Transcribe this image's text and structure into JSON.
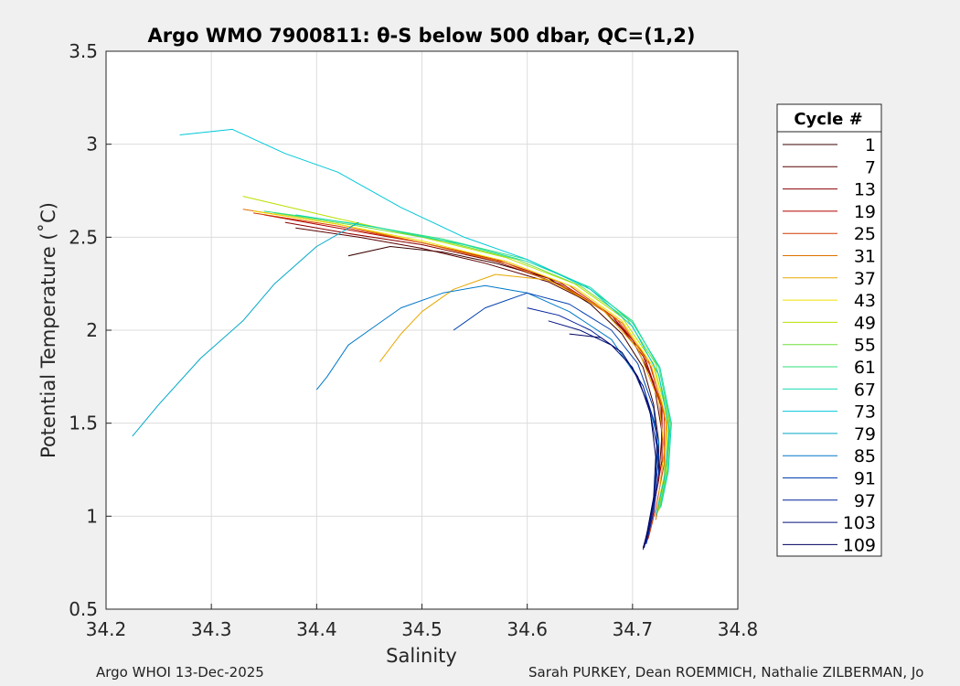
{
  "chart_data": {
    "type": "line",
    "title": "Argo WMO 7900811: θ-S below 500 dbar,  QC=(1,2)",
    "xlabel": "Salinity",
    "ylabel": "Potential Temperature (˚C)",
    "xlim": [
      34.2,
      34.8
    ],
    "ylim": [
      0.5,
      3.5
    ],
    "xticks": [
      "34.2",
      "34.3",
      "34.4",
      "34.5",
      "34.6",
      "34.7",
      "34.8"
    ],
    "yticks": [
      "0.5",
      "1",
      "1.5",
      "2",
      "2.5",
      "3",
      "3.5"
    ],
    "grid": true,
    "legend": {
      "title": "Cycle #",
      "placement": "right",
      "entries": [
        "1",
        "7",
        "13",
        "19",
        "25",
        "31",
        "37",
        "43",
        "49",
        "55",
        "61",
        "67",
        "73",
        "79",
        "85",
        "91",
        "97",
        "103",
        "109"
      ]
    },
    "colors": {
      "1": "#3a0000",
      "7": "#5a0000",
      "13": "#8b0000",
      "19": "#b30000",
      "25": "#d43a00",
      "31": "#e07000",
      "37": "#e8a800",
      "43": "#f0e000",
      "49": "#b8e000",
      "55": "#6fe03a",
      "61": "#2ee07a",
      "67": "#10d8b0",
      "73": "#00c8d8",
      "79": "#00a8c8",
      "85": "#0078c8",
      "91": "#0040b0",
      "97": "#00209a",
      "103": "#00107a",
      "109": "#000060"
    },
    "series": [
      {
        "name": "1",
        "x": [
          34.43,
          34.47,
          34.52,
          34.57,
          34.62,
          34.66,
          34.69,
          34.71,
          34.72,
          34.725,
          34.725,
          34.72,
          34.715,
          34.71
        ],
        "y": [
          2.4,
          2.45,
          2.42,
          2.36,
          2.28,
          2.14,
          1.98,
          1.8,
          1.6,
          1.4,
          1.2,
          1.05,
          0.93,
          0.83
        ]
      },
      {
        "name": "7",
        "x": [
          34.38,
          34.44,
          34.5,
          34.56,
          34.62,
          34.67,
          34.7,
          34.72,
          34.728,
          34.725,
          34.718,
          34.712
        ],
        "y": [
          2.55,
          2.5,
          2.44,
          2.36,
          2.26,
          2.12,
          1.95,
          1.72,
          1.45,
          1.2,
          1.0,
          0.85
        ]
      },
      {
        "name": "13",
        "x": [
          34.37,
          34.43,
          34.5,
          34.57,
          34.63,
          34.68,
          34.71,
          34.727,
          34.728,
          34.72,
          34.713
        ],
        "y": [
          2.58,
          2.52,
          2.46,
          2.37,
          2.25,
          2.08,
          1.88,
          1.6,
          1.3,
          1.05,
          0.86
        ]
      },
      {
        "name": "19",
        "x": [
          34.35,
          34.42,
          34.5,
          34.57,
          34.63,
          34.68,
          34.71,
          34.728,
          34.728,
          34.72,
          34.714
        ],
        "y": [
          2.62,
          2.55,
          2.47,
          2.38,
          2.26,
          2.08,
          1.86,
          1.58,
          1.3,
          1.05,
          0.87
        ]
      },
      {
        "name": "25",
        "x": [
          34.34,
          34.42,
          34.5,
          34.58,
          34.64,
          34.685,
          34.715,
          34.73,
          34.73,
          34.722,
          34.715
        ],
        "y": [
          2.63,
          2.56,
          2.47,
          2.37,
          2.24,
          2.06,
          1.84,
          1.56,
          1.28,
          1.04,
          0.88
        ]
      },
      {
        "name": "31",
        "x": [
          34.33,
          34.42,
          34.5,
          34.58,
          34.64,
          34.69,
          34.718,
          34.732,
          34.73,
          34.722
        ],
        "y": [
          2.65,
          2.57,
          2.47,
          2.36,
          2.22,
          2.04,
          1.8,
          1.5,
          1.2,
          0.98
        ]
      },
      {
        "name": "37",
        "x": [
          34.46,
          34.48,
          34.5,
          34.53,
          34.57,
          34.62,
          34.67,
          34.705,
          34.725,
          34.73,
          34.725
        ],
        "y": [
          1.83,
          1.98,
          2.1,
          2.22,
          2.3,
          2.27,
          2.12,
          1.9,
          1.62,
          1.35,
          1.12
        ]
      },
      {
        "name": "43",
        "x": [
          34.34,
          34.42,
          34.5,
          34.58,
          34.645,
          34.69,
          34.72,
          34.733,
          34.73,
          34.722
        ],
        "y": [
          2.64,
          2.57,
          2.48,
          2.37,
          2.23,
          2.05,
          1.8,
          1.5,
          1.22,
          1.0
        ]
      },
      {
        "name": "49",
        "x": [
          34.33,
          34.42,
          34.5,
          34.58,
          34.645,
          34.69,
          34.72,
          34.734,
          34.732,
          34.724
        ],
        "y": [
          2.72,
          2.6,
          2.5,
          2.39,
          2.25,
          2.07,
          1.82,
          1.52,
          1.24,
          1.02
        ]
      },
      {
        "name": "55",
        "x": [
          34.36,
          34.44,
          34.52,
          34.59,
          34.65,
          34.695,
          34.722,
          34.735,
          34.733,
          34.725
        ],
        "y": [
          2.63,
          2.56,
          2.48,
          2.38,
          2.24,
          2.06,
          1.82,
          1.52,
          1.25,
          1.03
        ]
      },
      {
        "name": "61",
        "x": [
          34.35,
          34.44,
          34.52,
          34.6,
          34.655,
          34.7,
          34.725,
          34.736,
          34.733,
          34.726
        ],
        "y": [
          2.64,
          2.57,
          2.49,
          2.38,
          2.24,
          2.05,
          1.8,
          1.5,
          1.24,
          1.04
        ]
      },
      {
        "name": "67",
        "x": [
          34.38,
          34.46,
          34.54,
          34.6,
          34.66,
          34.7,
          34.726,
          34.737,
          34.734,
          34.727
        ],
        "y": [
          2.62,
          2.55,
          2.46,
          2.37,
          2.23,
          2.04,
          1.8,
          1.5,
          1.24,
          1.05
        ]
      },
      {
        "name": "73",
        "x": [
          34.27,
          34.32,
          34.37,
          34.42,
          34.48,
          34.54,
          34.6,
          34.66,
          34.7,
          34.725,
          34.735,
          34.73,
          34.722
        ],
        "y": [
          3.05,
          3.08,
          2.95,
          2.85,
          2.66,
          2.5,
          2.38,
          2.22,
          2.02,
          1.76,
          1.46,
          1.2,
          1.0
        ]
      },
      {
        "name": "79",
        "x": [
          34.225,
          34.25,
          34.29,
          34.33,
          34.36,
          34.4,
          34.44
        ],
        "y": [
          1.43,
          1.6,
          1.85,
          2.05,
          2.25,
          2.45,
          2.58
        ]
      },
      {
        "name": "85",
        "x": [
          34.4,
          34.41,
          34.43,
          34.45,
          34.48,
          34.52,
          34.56,
          34.6,
          34.64,
          34.68,
          34.71,
          34.725,
          34.72,
          34.712
        ],
        "y": [
          1.68,
          1.75,
          1.92,
          2.0,
          2.12,
          2.2,
          2.24,
          2.2,
          2.1,
          1.95,
          1.7,
          1.4,
          1.1,
          0.85
        ]
      },
      {
        "name": "91",
        "x": [
          34.53,
          34.56,
          34.6,
          34.64,
          34.68,
          34.705,
          34.72,
          34.725,
          34.72,
          34.713
        ],
        "y": [
          2.0,
          2.12,
          2.2,
          2.14,
          2.0,
          1.82,
          1.58,
          1.32,
          1.06,
          0.86
        ]
      },
      {
        "name": "97",
        "x": [
          34.6,
          34.63,
          34.66,
          34.69,
          34.71,
          34.722,
          34.725,
          34.72,
          34.713
        ],
        "y": [
          2.12,
          2.08,
          2.0,
          1.88,
          1.7,
          1.48,
          1.24,
          1.02,
          0.85
        ]
      },
      {
        "name": "103",
        "x": [
          34.62,
          34.65,
          34.68,
          34.7,
          34.715,
          34.723,
          34.722,
          34.716,
          34.711
        ],
        "y": [
          2.05,
          2.0,
          1.92,
          1.8,
          1.6,
          1.38,
          1.15,
          0.95,
          0.83
        ]
      },
      {
        "name": "109",
        "x": [
          34.64,
          34.67,
          34.69,
          34.705,
          34.717,
          34.722,
          34.72,
          34.714,
          34.71
        ],
        "y": [
          1.98,
          1.96,
          1.88,
          1.75,
          1.55,
          1.32,
          1.1,
          0.92,
          0.82
        ]
      }
    ]
  },
  "footer": {
    "left": "Argo WHOI 13-Dec-2025",
    "right": "Sarah PURKEY, Dean ROEMMICH, Nathalie ZILBERMAN, Jo"
  }
}
